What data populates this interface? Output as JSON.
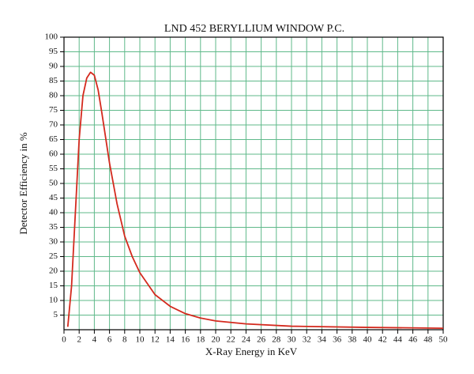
{
  "chart_data": {
    "type": "line",
    "title": "LND 452 BERYLLIUM WINDOW P.C.",
    "x_label": "X-Ray Energy in KeV",
    "y_label": "Detector Efficiency in %",
    "x": [
      0.5,
      1,
      1.5,
      2,
      2.5,
      3,
      3.5,
      4,
      4.5,
      5,
      6,
      7,
      8,
      9,
      10,
      12,
      14,
      16,
      18,
      20,
      24,
      30,
      40,
      50
    ],
    "series": [
      {
        "color": "#d42a1e",
        "values": [
          1,
          15,
          40,
          65,
          80,
          86,
          88,
          87,
          82,
          74,
          57,
          43,
          32,
          25,
          19.5,
          12,
          8,
          5.5,
          4,
          3,
          2,
          1.2,
          0.8,
          0.5
        ]
      }
    ],
    "xlim": [
      0,
      50
    ],
    "ylim": [
      0,
      100
    ],
    "xticks": [
      0,
      2,
      4,
      6,
      8,
      10,
      12,
      14,
      16,
      18,
      20,
      22,
      24,
      26,
      28,
      30,
      32,
      34,
      36,
      38,
      40,
      42,
      44,
      46,
      48,
      50
    ],
    "yticks": [
      5,
      10,
      15,
      20,
      25,
      30,
      35,
      40,
      45,
      50,
      55,
      60,
      65,
      70,
      75,
      80,
      85,
      90,
      95,
      100
    ],
    "grid": true,
    "grid_color": "#5fb98a"
  }
}
